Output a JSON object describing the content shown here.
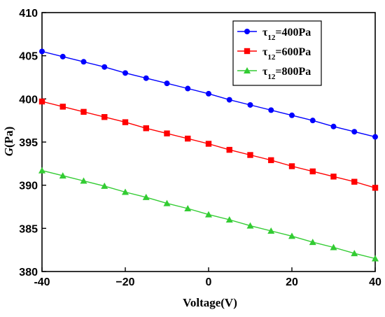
{
  "chart_data": {
    "type": "line",
    "title": "",
    "xlabel": "Voltage(V)",
    "ylabel": "G(Pa)",
    "ylabel_italic": "G",
    "ylabel_rest": "(Pa)",
    "xlim": [
      -40,
      40
    ],
    "ylim": [
      380,
      410
    ],
    "xticks": [
      -40,
      -20,
      0,
      20,
      40
    ],
    "xtick_labels": [
      "-40",
      "−20",
      "0",
      "20",
      "40"
    ],
    "yticks": [
      380,
      385,
      390,
      395,
      400,
      405,
      410
    ],
    "ytick_labels": [
      "380",
      "385",
      "390",
      "395",
      "400",
      "405",
      "410"
    ],
    "grid": false,
    "legend_position": "top-right",
    "x": [
      -40,
      -35,
      -30,
      -25,
      -20,
      -15,
      -10,
      -5,
      0,
      5,
      10,
      15,
      20,
      25,
      30,
      35,
      40
    ],
    "series": [
      {
        "name": "τ12=400Pa",
        "legend_main": "τ",
        "legend_sub": "12",
        "legend_rest": "=400Pa",
        "color": "#0000ff",
        "marker": "circle",
        "values": [
          405.5,
          404.9,
          404.3,
          403.7,
          403.0,
          402.4,
          401.8,
          401.2,
          400.6,
          399.9,
          399.3,
          398.7,
          398.1,
          397.5,
          396.8,
          396.2,
          395.6
        ]
      },
      {
        "name": "τ12=600Pa",
        "legend_main": "τ",
        "legend_sub": "12",
        "legend_rest": "=600Pa",
        "color": "#ff0000",
        "marker": "square",
        "values": [
          399.7,
          399.1,
          398.5,
          397.9,
          397.3,
          396.6,
          396.0,
          395.4,
          394.8,
          394.1,
          393.5,
          392.9,
          392.2,
          391.6,
          391.0,
          390.4,
          389.7
        ]
      },
      {
        "name": "τ12=800Pa",
        "legend_main": "τ",
        "legend_sub": "12",
        "legend_rest": "=800Pa",
        "color": "#33cc33",
        "marker": "triangle",
        "values": [
          391.7,
          391.1,
          390.5,
          389.9,
          389.2,
          388.6,
          387.9,
          387.3,
          386.6,
          386.0,
          385.3,
          384.7,
          384.1,
          383.4,
          382.8,
          382.1,
          381.5
        ]
      }
    ]
  }
}
